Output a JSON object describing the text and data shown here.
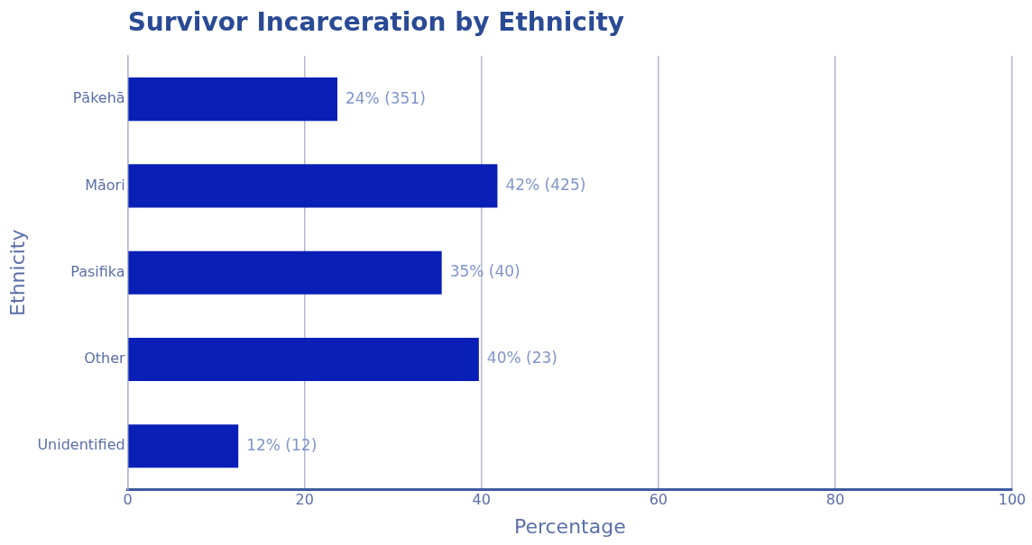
{
  "chart_data": {
    "type": "bar",
    "orientation": "horizontal",
    "title": "Survivor Incarceration by Ethnicity",
    "xlabel": "Percentage",
    "ylabel": "Ethnicity",
    "categories": [
      "Pākehā",
      "Māori",
      "Pasifika",
      "Other",
      "Unidentified"
    ],
    "values": [
      23.7,
      41.8,
      35.5,
      39.7,
      12.5
    ],
    "value_labels": [
      "24% (351)",
      "42% (425)",
      "35% (40)",
      "40% (23)",
      "12% (12)"
    ],
    "color": "#0a1fb5",
    "xlim": [
      0,
      100
    ],
    "xticks": [
      0,
      20,
      40,
      60,
      80,
      100
    ],
    "grid": "x",
    "legend": false
  }
}
